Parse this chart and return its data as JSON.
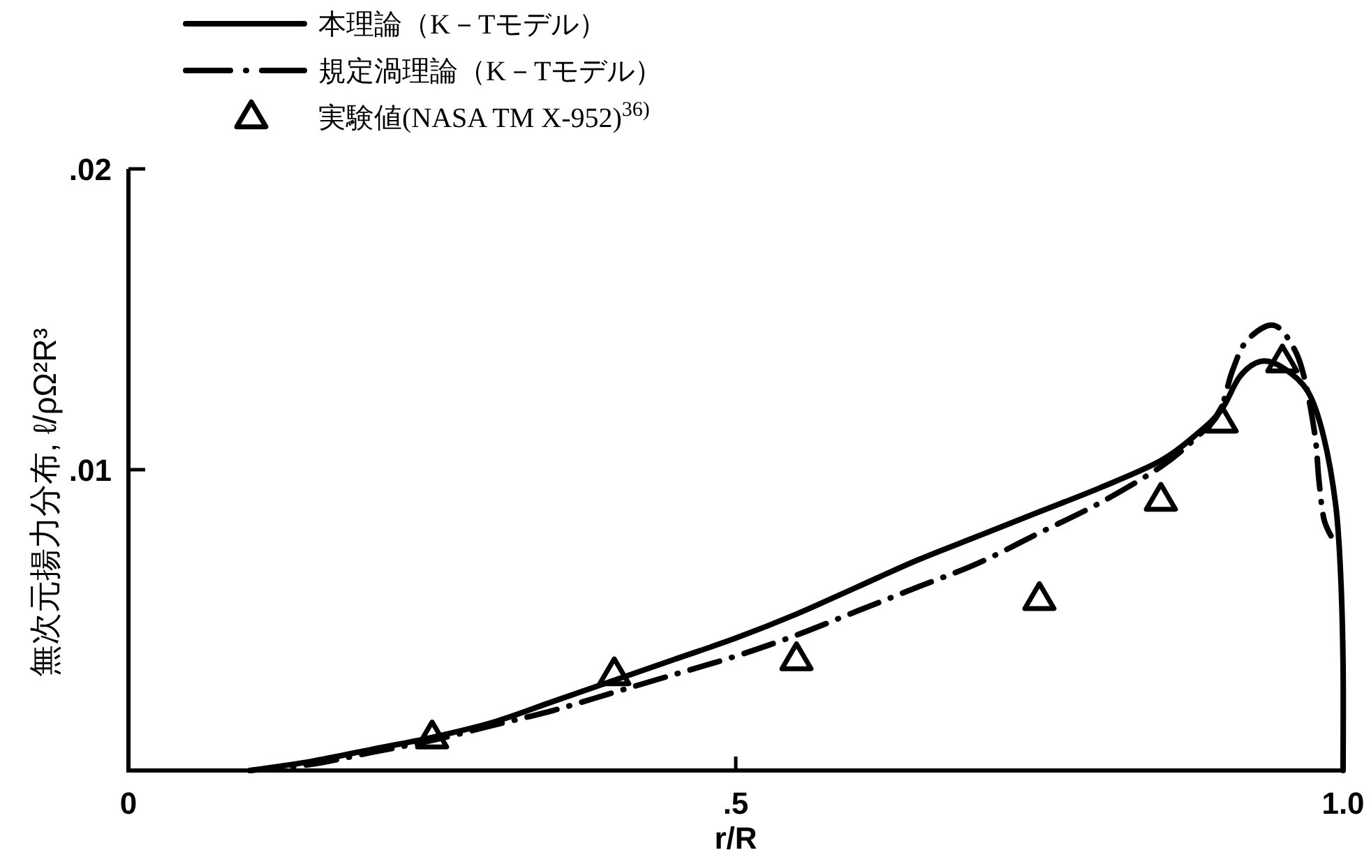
{
  "chart_data": {
    "type": "line",
    "xlabel": "r/R",
    "ylabel": "無次元揚力分布, ℓ/ρΩ²R³",
    "xlim": [
      0,
      1.0
    ],
    "ylim": [
      0,
      0.02
    ],
    "xticks": [
      0,
      {
        "value": 0.5,
        "label": ".5"
      },
      {
        "value": 1.0,
        "label": "1.0"
      }
    ],
    "yticks": [
      {
        "value": 0.01,
        "label": ".01"
      },
      {
        "value": 0.02,
        "label": ".02"
      }
    ],
    "legend": "top left",
    "series": [
      {
        "name": "本理論（K－Tモデル）",
        "color": "#000000",
        "line_style": "solid",
        "x": [
          0.1,
          0.15,
          0.2,
          0.25,
          0.3,
          0.35,
          0.4,
          0.45,
          0.5,
          0.55,
          0.6,
          0.65,
          0.7,
          0.75,
          0.8,
          0.85,
          0.88,
          0.9,
          0.915,
          0.932,
          0.95,
          0.971,
          0.984,
          0.994,
          0.998,
          1.0,
          1.0
        ],
        "values": [
          0,
          0.0003,
          0.0007,
          0.0011,
          0.0016,
          0.0023,
          0.003,
          0.0037,
          0.0044,
          0.0052,
          0.0061,
          0.007,
          0.0078,
          0.0086,
          0.0094,
          0.0103,
          0.0112,
          0.012,
          0.0131,
          0.0136,
          0.0134,
          0.0126,
          0.0111,
          0.0088,
          0.0065,
          0.0035,
          0
        ]
      },
      {
        "name": "規定渦理論（K－Tモデル）",
        "color": "#000000",
        "line_style": "dashdot",
        "x": [
          0.1,
          0.15,
          0.2,
          0.25,
          0.3,
          0.35,
          0.4,
          0.45,
          0.5,
          0.55,
          0.6,
          0.65,
          0.7,
          0.75,
          0.8,
          0.85,
          0.88,
          0.898,
          0.909,
          0.921,
          0.943,
          0.96,
          0.969,
          0.977,
          0.98,
          0.984,
          0.99
        ],
        "values": [
          0,
          0.0002,
          0.0006,
          0.001,
          0.0015,
          0.002,
          0.0026,
          0.0032,
          0.0038,
          0.0045,
          0.0053,
          0.0061,
          0.0069,
          0.0079,
          0.0089,
          0.0101,
          0.0111,
          0.0119,
          0.0133,
          0.0143,
          0.0148,
          0.014,
          0.0129,
          0.0111,
          0.0097,
          0.0084,
          0.0078
        ]
      },
      {
        "name": "実験値(NASA TM X-952)$^{36)}$",
        "type": "scatter",
        "marker": "triangle",
        "color": "#000000",
        "x": [
          0.25,
          0.4,
          0.55,
          0.75,
          0.85,
          0.9,
          0.95
        ],
        "values": [
          0.0011,
          0.0032,
          0.0037,
          0.0057,
          0.009,
          0.0116,
          0.0136
        ]
      }
    ]
  }
}
